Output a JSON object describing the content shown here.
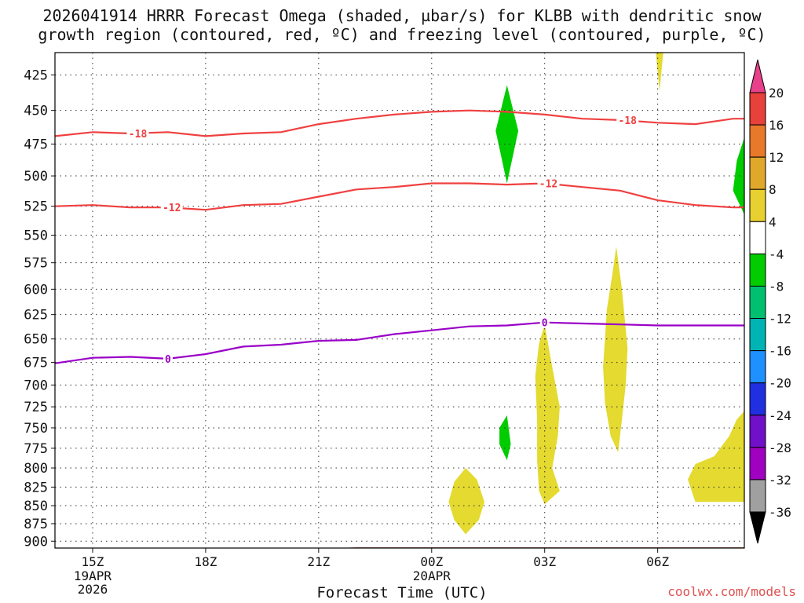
{
  "title": {
    "line1": "2026041914 HRRR Forecast Omega (shaded, µbar/s) for KLBB with dendritic snow",
    "line2": "growth region (contoured, red, ºC) and freezing level (contoured, purple, ºC)"
  },
  "credit": "coolwx.com/models",
  "chart_data": {
    "type": "time-height contour",
    "xlabel": "Forecast Time (UTC)",
    "ylabel": "",
    "x_range_hours_after_20260419_14Z": [
      0,
      18.3
    ],
    "ylim": [
      910,
      410
    ],
    "y_scale": "pressure (log-p), mb",
    "x_ticks": [
      {
        "hour": 1,
        "label": "15Z",
        "sub": [
          "19APR",
          "2026"
        ]
      },
      {
        "hour": 4,
        "label": "18Z",
        "sub": []
      },
      {
        "hour": 7,
        "label": "21Z",
        "sub": []
      },
      {
        "hour": 10,
        "label": "00Z",
        "sub": [
          "20APR"
        ]
      },
      {
        "hour": 13,
        "label": "03Z",
        "sub": []
      },
      {
        "hour": 16,
        "label": "06Z",
        "sub": []
      }
    ],
    "y_ticks": [
      425,
      450,
      475,
      500,
      525,
      550,
      575,
      600,
      625,
      650,
      675,
      700,
      725,
      750,
      775,
      800,
      825,
      850,
      875,
      900
    ],
    "grid": true,
    "contours": [
      {
        "label": "-18",
        "color": "#f04040",
        "points": [
          [
            0,
            469
          ],
          [
            1,
            466
          ],
          [
            2,
            467
          ],
          [
            3,
            466
          ],
          [
            4,
            469
          ],
          [
            5,
            467
          ],
          [
            6,
            466
          ],
          [
            7,
            460
          ],
          [
            8,
            456
          ],
          [
            9,
            453
          ],
          [
            10,
            451
          ],
          [
            11,
            450
          ],
          [
            12,
            451
          ],
          [
            13,
            453
          ],
          [
            14,
            456
          ],
          [
            15,
            457
          ],
          [
            16,
            459
          ],
          [
            17,
            460
          ],
          [
            18,
            456
          ],
          [
            18.3,
            456
          ]
        ],
        "label_at": [
          [
            2.2,
            467
          ],
          [
            15.2,
            457
          ]
        ]
      },
      {
        "label": "-12",
        "color": "#f04040",
        "points": [
          [
            0,
            525
          ],
          [
            1,
            524
          ],
          [
            2,
            526
          ],
          [
            3,
            526
          ],
          [
            4,
            528
          ],
          [
            5,
            524
          ],
          [
            6,
            523
          ],
          [
            7,
            517
          ],
          [
            8,
            511
          ],
          [
            9,
            509
          ],
          [
            10,
            506
          ],
          [
            11,
            506
          ],
          [
            12,
            507
          ],
          [
            13,
            506
          ],
          [
            14,
            509
          ],
          [
            15,
            512
          ],
          [
            16,
            520
          ],
          [
            17,
            524
          ],
          [
            18,
            526
          ],
          [
            18.3,
            526
          ]
        ],
        "label_at": [
          [
            3.1,
            526
          ],
          [
            13.1,
            506
          ]
        ]
      },
      {
        "label": "0",
        "color": "#9a00c8",
        "points": [
          [
            0,
            676
          ],
          [
            1,
            670
          ],
          [
            2,
            669
          ],
          [
            3,
            671
          ],
          [
            4,
            666
          ],
          [
            5,
            658
          ],
          [
            6,
            656
          ],
          [
            7,
            652
          ],
          [
            8,
            651
          ],
          [
            9,
            645
          ],
          [
            10,
            641
          ],
          [
            11,
            637
          ],
          [
            12,
            636
          ],
          [
            13,
            633
          ],
          [
            14,
            634
          ],
          [
            15,
            635
          ],
          [
            16,
            636
          ],
          [
            17,
            636
          ],
          [
            18,
            636
          ],
          [
            18.3,
            636
          ]
        ],
        "label_at": [
          [
            3.0,
            671
          ],
          [
            13.0,
            633
          ]
        ]
      }
    ],
    "shaded_regions": [
      {
        "omega": "-4 to -8",
        "color": "#00cc00",
        "points": [
          [
            12,
            432
          ],
          [
            12.3,
            465
          ],
          [
            12,
            506
          ],
          [
            11.7,
            465
          ]
        ]
      },
      {
        "omega": "-4 to -8",
        "color": "#00cc00",
        "points": [
          [
            18.3,
            470
          ],
          [
            18.3,
            532
          ],
          [
            18.0,
            512
          ],
          [
            18.1,
            488
          ]
        ]
      },
      {
        "omega": "-4 to -8",
        "color": "#00cc00",
        "points": [
          [
            12,
            735
          ],
          [
            12.1,
            770
          ],
          [
            12,
            790
          ],
          [
            11.8,
            770
          ],
          [
            11.8,
            750
          ]
        ]
      },
      {
        "omega": "4 to 8",
        "color": "#e4da30",
        "points": [
          [
            16,
            410
          ],
          [
            16.15,
            410
          ],
          [
            16.05,
            436
          ],
          [
            15.95,
            410
          ]
        ]
      },
      {
        "omega": "4 to 8",
        "color": "#e4da30",
        "points": [
          [
            10.9,
            800
          ],
          [
            11.2,
            815
          ],
          [
            11.4,
            845
          ],
          [
            11.25,
            870
          ],
          [
            10.9,
            890
          ],
          [
            10.6,
            870
          ],
          [
            10.45,
            845
          ],
          [
            10.6,
            818
          ]
        ]
      },
      {
        "omega": "4 to 8",
        "color": "#e4da30",
        "points": [
          [
            13,
            635
          ],
          [
            13.2,
            680
          ],
          [
            13.4,
            725
          ],
          [
            13.35,
            760
          ],
          [
            13.2,
            800
          ],
          [
            13.4,
            830
          ],
          [
            13,
            848
          ],
          [
            12.85,
            830
          ],
          [
            12.8,
            790
          ],
          [
            12.8,
            740
          ],
          [
            12.75,
            690
          ],
          [
            12.85,
            655
          ]
        ]
      },
      {
        "omega": "4 to 8",
        "color": "#e4da30",
        "points": [
          [
            14.9,
            560
          ],
          [
            15.05,
            600
          ],
          [
            15.2,
            660
          ],
          [
            15.15,
            700
          ],
          [
            15.05,
            740
          ],
          [
            14.95,
            780
          ],
          [
            14.75,
            760
          ],
          [
            14.6,
            720
          ],
          [
            14.55,
            680
          ],
          [
            14.65,
            620
          ],
          [
            14.8,
            585
          ]
        ]
      },
      {
        "omega": "4 to 8",
        "color": "#e4da30",
        "points": [
          [
            18.3,
            730
          ],
          [
            18.3,
            845
          ],
          [
            17,
            845
          ],
          [
            16.8,
            815
          ],
          [
            17,
            795
          ],
          [
            17.5,
            785
          ],
          [
            17.9,
            760
          ],
          [
            18.1,
            740
          ]
        ]
      }
    ],
    "terrain": {
      "color": "#a0522d",
      "points": [
        [
          0,
          915
        ],
        [
          3,
          915
        ],
        [
          5,
          913
        ],
        [
          7,
          911
        ],
        [
          8,
          909
        ],
        [
          11,
          909
        ],
        [
          14,
          909
        ],
        [
          18.3,
          909
        ]
      ]
    },
    "colorbar": {
      "levels": [
        20,
        16,
        12,
        8,
        4,
        -4,
        -8,
        -12,
        -16,
        -20,
        -24,
        -28,
        -32,
        -36
      ],
      "colors": [
        "#e8408a",
        "#e8403a",
        "#e8782a",
        "#e0a82a",
        "#e8d030",
        "#ffffff",
        "#00cc00",
        "#00c070",
        "#00b4b4",
        "#1e90ff",
        "#2030e0",
        "#7010c8",
        "#a000c0",
        "#a0a0a0",
        "#000000"
      ],
      "top_cap": "#e8408a",
      "bottom_cap": "#000000"
    }
  }
}
